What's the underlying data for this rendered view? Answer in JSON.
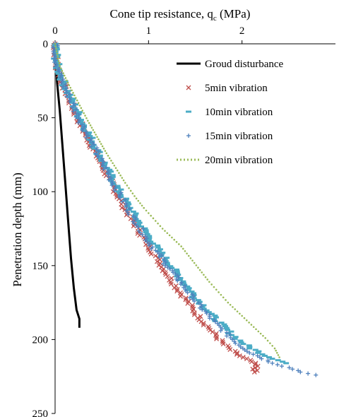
{
  "chart_data": {
    "type": "scatter",
    "x_title_main": "Cone tip resistance, q",
    "x_title_sub": "c",
    "x_title_unit": " (MPa)",
    "ylabel": "Penetration depth (mm)",
    "xlim": [
      0,
      3
    ],
    "ylim": [
      0,
      250
    ],
    "y_inverted": true,
    "x_axis_position": "top",
    "x_ticks": [
      0,
      1,
      2
    ],
    "y_ticks": [
      0,
      50,
      100,
      150,
      200,
      250
    ],
    "grid": false,
    "legend_position": "top-right",
    "series": [
      {
        "name": "Groud disturbance",
        "marker": "line",
        "color": "#000000",
        "points": [
          [
            0.01,
            14
          ],
          [
            0.02,
            25
          ],
          [
            0.05,
            45
          ],
          [
            0.08,
            70
          ],
          [
            0.11,
            95
          ],
          [
            0.14,
            120
          ],
          [
            0.17,
            145
          ],
          [
            0.2,
            165
          ],
          [
            0.23,
            180
          ],
          [
            0.26,
            186
          ],
          [
            0.26,
            192
          ]
        ]
      },
      {
        "name": "5min vibration",
        "marker": "x",
        "color": "#c0504d",
        "points": [
          [
            0,
            0
          ],
          [
            0.02,
            15
          ],
          [
            0.1,
            30
          ],
          [
            0.2,
            45
          ],
          [
            0.3,
            58
          ],
          [
            0.4,
            70
          ],
          [
            0.5,
            82
          ],
          [
            0.6,
            94
          ],
          [
            0.7,
            106
          ],
          [
            0.8,
            117
          ],
          [
            0.9,
            127
          ],
          [
            1.0,
            137
          ],
          [
            1.1,
            146
          ],
          [
            1.2,
            156
          ],
          [
            1.3,
            165
          ],
          [
            1.4,
            173
          ],
          [
            1.5,
            182
          ],
          [
            1.6,
            189
          ],
          [
            1.7,
            196
          ],
          [
            1.8,
            203
          ],
          [
            1.9,
            208
          ],
          [
            2.0,
            212
          ],
          [
            2.1,
            215
          ],
          [
            2.15,
            218
          ],
          [
            2.13,
            222
          ]
        ]
      },
      {
        "name": "10min vibration",
        "marker": "dash",
        "color": "#4bacc6",
        "points": [
          [
            0,
            0
          ],
          [
            0.02,
            15
          ],
          [
            0.1,
            28
          ],
          [
            0.2,
            41
          ],
          [
            0.3,
            54
          ],
          [
            0.4,
            66
          ],
          [
            0.5,
            78
          ],
          [
            0.6,
            90
          ],
          [
            0.7,
            101
          ],
          [
            0.8,
            111
          ],
          [
            0.9,
            121
          ],
          [
            1.0,
            130
          ],
          [
            1.1,
            139
          ],
          [
            1.2,
            147
          ],
          [
            1.3,
            155
          ],
          [
            1.4,
            163
          ],
          [
            1.5,
            171
          ],
          [
            1.6,
            178
          ],
          [
            1.7,
            185
          ],
          [
            1.8,
            191
          ],
          [
            1.9,
            197
          ],
          [
            2.0,
            202
          ],
          [
            2.1,
            206
          ],
          [
            2.2,
            209
          ],
          [
            2.3,
            212
          ],
          [
            2.4,
            214
          ],
          [
            2.47,
            216
          ]
        ]
      },
      {
        "name": "15min vibration",
        "marker": "plus",
        "color": "#4f81bd",
        "points": [
          [
            0,
            0
          ],
          [
            0.02,
            15
          ],
          [
            0.1,
            29
          ],
          [
            0.2,
            43
          ],
          [
            0.3,
            56
          ],
          [
            0.4,
            68
          ],
          [
            0.5,
            80
          ],
          [
            0.6,
            92
          ],
          [
            0.7,
            103
          ],
          [
            0.8,
            114
          ],
          [
            0.9,
            124
          ],
          [
            1.0,
            134
          ],
          [
            1.1,
            142
          ],
          [
            1.2,
            150
          ],
          [
            1.3,
            158
          ],
          [
            1.4,
            166
          ],
          [
            1.5,
            174
          ],
          [
            1.6,
            181
          ],
          [
            1.7,
            188
          ],
          [
            1.8,
            194
          ],
          [
            1.9,
            200
          ],
          [
            2.0,
            205
          ],
          [
            2.1,
            209
          ],
          [
            2.2,
            212
          ],
          [
            2.3,
            215
          ],
          [
            2.4,
            217
          ],
          [
            2.5,
            219
          ],
          [
            2.6,
            221
          ],
          [
            2.7,
            223
          ],
          [
            2.77,
            224
          ]
        ]
      },
      {
        "name": "20min vibration",
        "marker": "dotted",
        "color": "#9bbb59",
        "points": [
          [
            0,
            0
          ],
          [
            0.05,
            15
          ],
          [
            0.15,
            28
          ],
          [
            0.25,
            40
          ],
          [
            0.35,
            52
          ],
          [
            0.45,
            63
          ],
          [
            0.55,
            74
          ],
          [
            0.65,
            84
          ],
          [
            0.75,
            94
          ],
          [
            0.85,
            103
          ],
          [
            0.95,
            111
          ],
          [
            1.05,
            118
          ],
          [
            1.15,
            125
          ],
          [
            1.25,
            131
          ],
          [
            1.35,
            137
          ],
          [
            1.45,
            145
          ],
          [
            1.55,
            153
          ],
          [
            1.65,
            161
          ],
          [
            1.75,
            168
          ],
          [
            1.85,
            175
          ],
          [
            1.95,
            181
          ],
          [
            2.05,
            187
          ],
          [
            2.15,
            193
          ],
          [
            2.25,
            199
          ],
          [
            2.35,
            206
          ],
          [
            2.4,
            212
          ]
        ]
      }
    ]
  }
}
